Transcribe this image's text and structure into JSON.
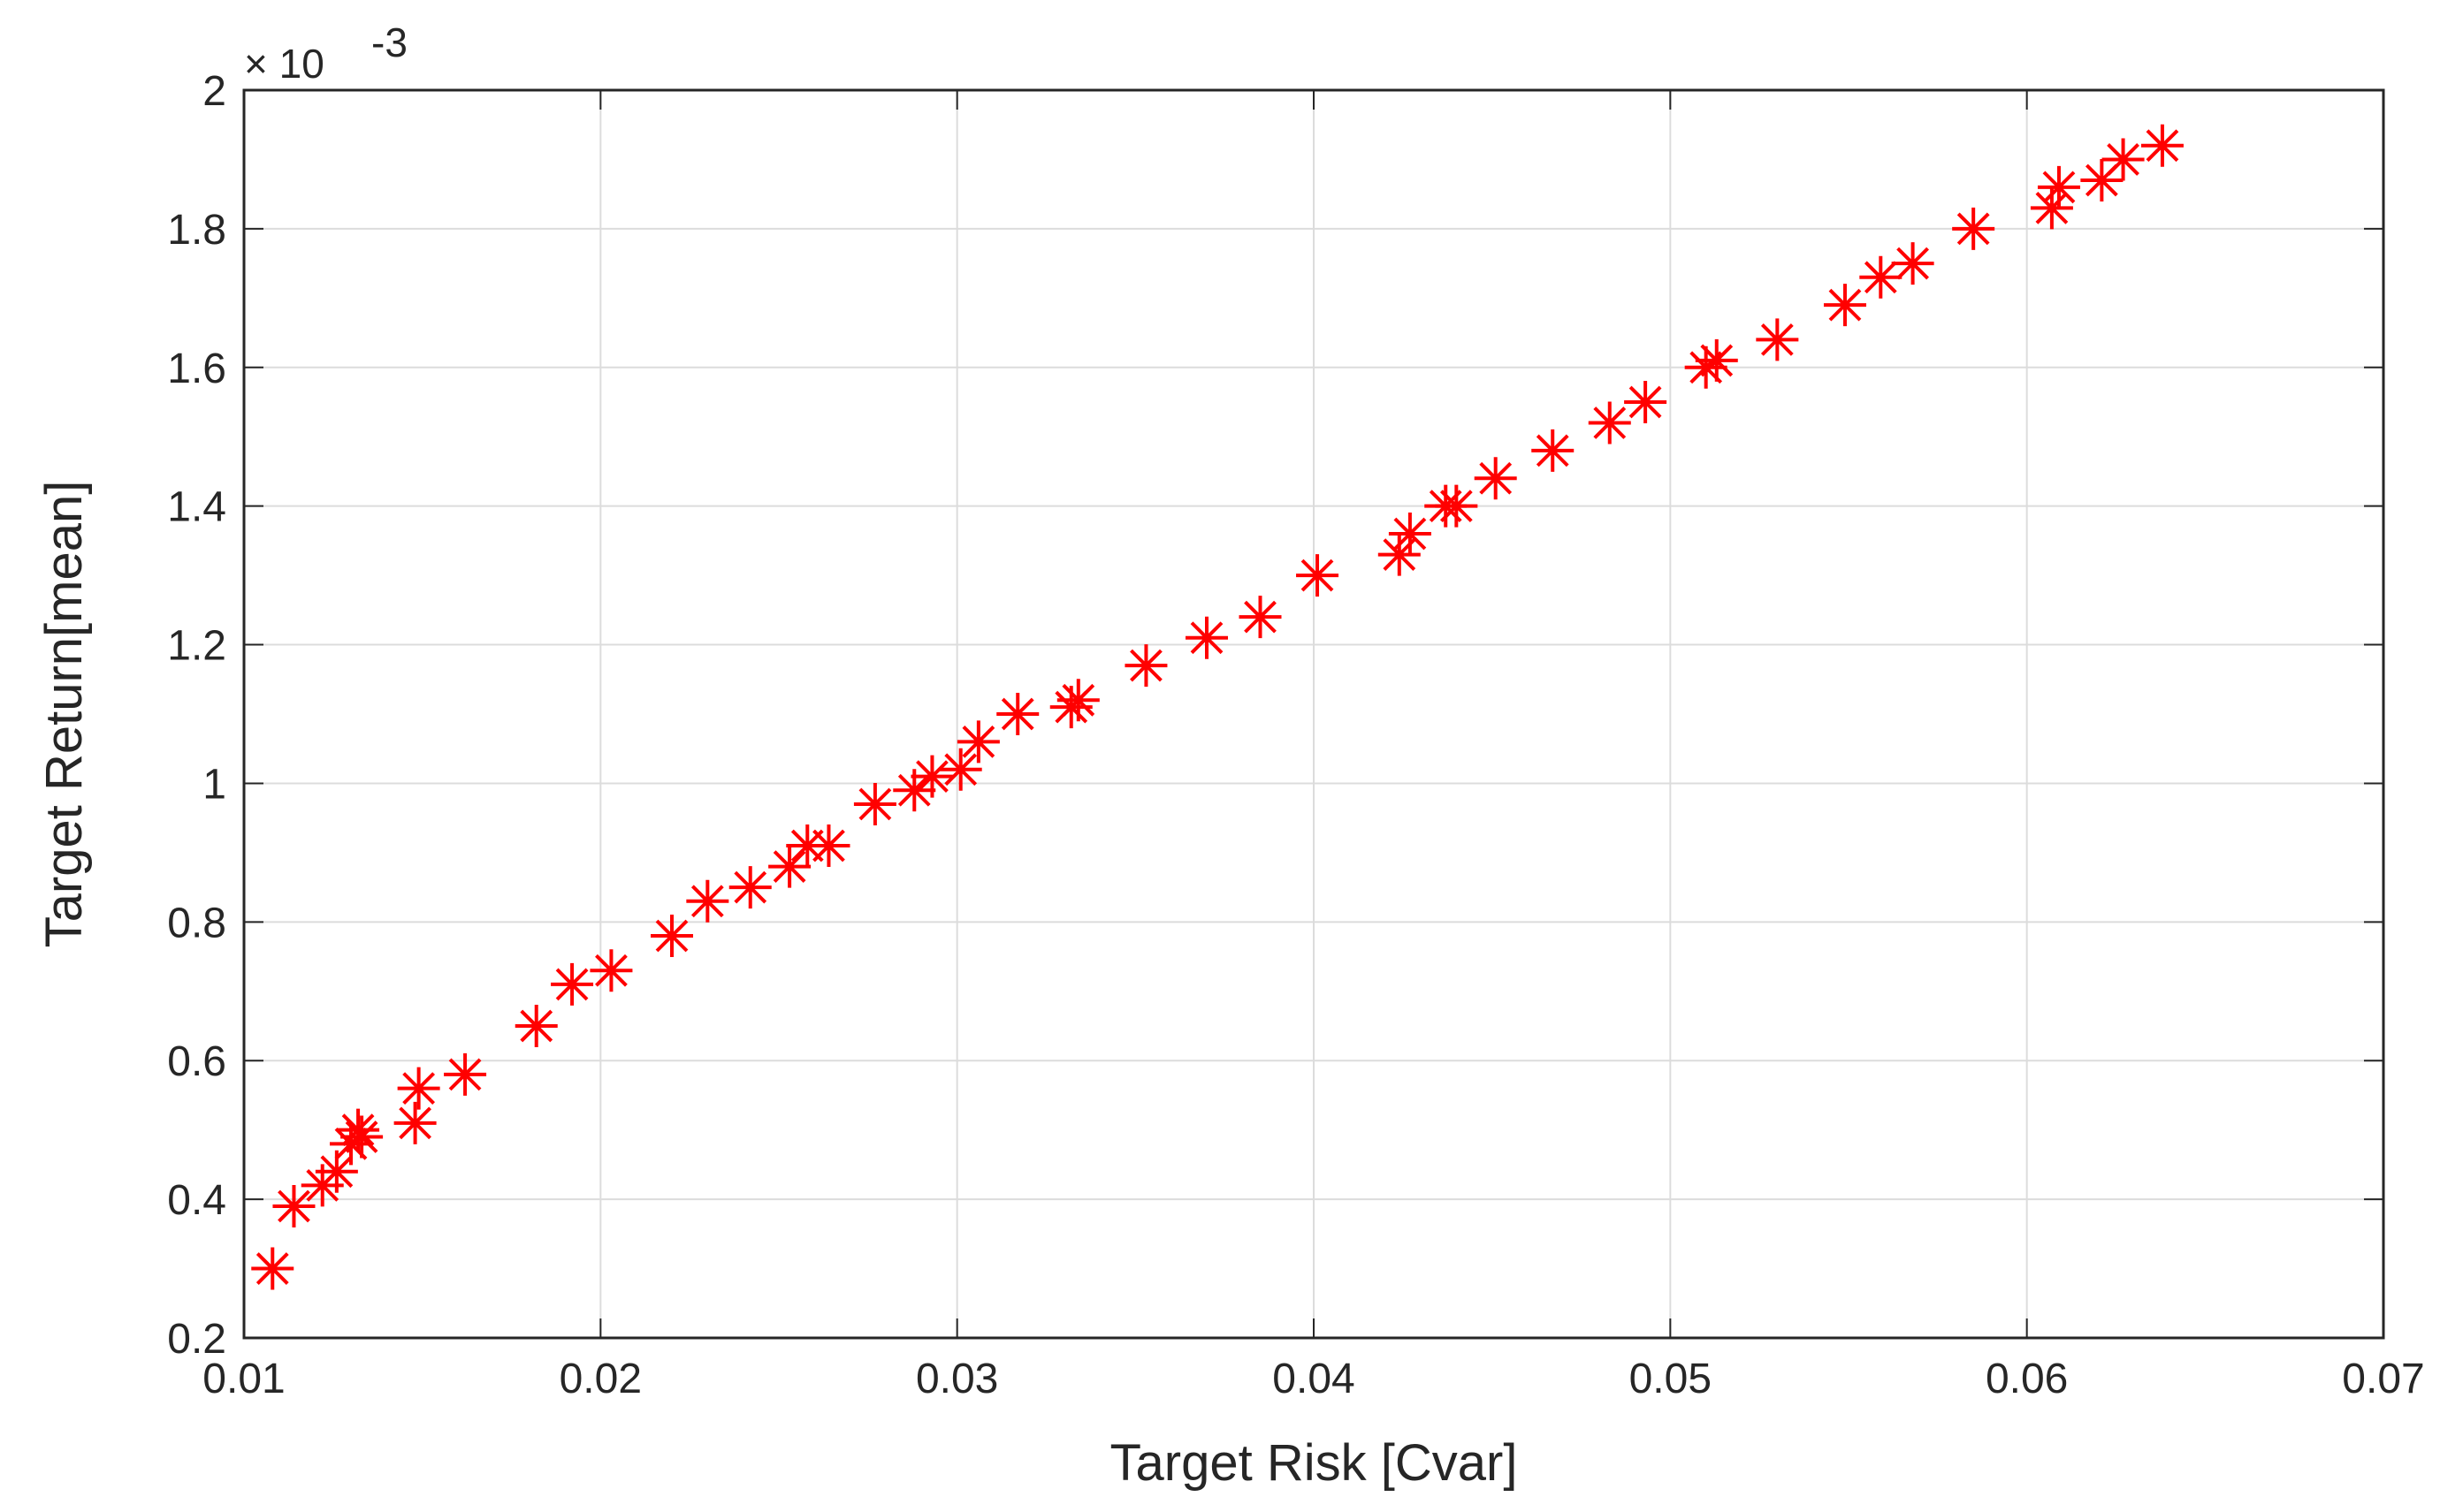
{
  "chart_data": {
    "type": "scatter",
    "title": "",
    "xlabel": "Target Risk [Cvar]",
    "ylabel": "Target Return[mean]",
    "y_multiplier_label": "× 10",
    "y_multiplier_exponent": "-3",
    "xlim": [
      0.01,
      0.07
    ],
    "ylim": [
      0.2,
      2.0
    ],
    "x_ticks": [
      "0.01",
      "0.02",
      "0.03",
      "0.04",
      "0.05",
      "0.06",
      "0.07"
    ],
    "y_ticks": [
      "0.2",
      "0.4",
      "0.6",
      "0.8",
      "1",
      "1.2",
      "1.4",
      "1.6",
      "1.8",
      "2"
    ],
    "grid": true,
    "marker": "asterisk",
    "marker_color": "#ff0000",
    "series": [
      {
        "x": [
          0.0108,
          0.0114,
          0.0122,
          0.0126,
          0.013,
          0.0132,
          0.0133,
          0.0148,
          0.0149,
          0.0162,
          0.0182,
          0.0192,
          0.0203,
          0.022,
          0.023,
          0.0242,
          0.0253,
          0.0258,
          0.0264,
          0.0277,
          0.0288,
          0.0293,
          0.0301,
          0.0306,
          0.0317,
          0.0332,
          0.0334,
          0.0353,
          0.037,
          0.0385,
          0.0401,
          0.0424,
          0.0427,
          0.0437,
          0.044,
          0.0451,
          0.0467,
          0.0483,
          0.0493,
          0.051,
          0.0513,
          0.053,
          0.0549,
          0.0559,
          0.0568,
          0.0585,
          0.0607,
          0.0609,
          0.0621,
          0.0627,
          0.0638
        ],
        "y": [
          0.3,
          0.39,
          0.42,
          0.44,
          0.48,
          0.5,
          0.49,
          0.51,
          0.56,
          0.58,
          0.65,
          0.71,
          0.73,
          0.78,
          0.83,
          0.85,
          0.88,
          0.91,
          0.91,
          0.97,
          0.99,
          1.01,
          1.02,
          1.06,
          1.1,
          1.11,
          1.12,
          1.17,
          1.21,
          1.24,
          1.3,
          1.33,
          1.36,
          1.4,
          1.4,
          1.44,
          1.48,
          1.52,
          1.55,
          1.6,
          1.61,
          1.64,
          1.69,
          1.73,
          1.75,
          1.8,
          1.83,
          1.86,
          1.87,
          1.9,
          1.92
        ]
      }
    ]
  }
}
